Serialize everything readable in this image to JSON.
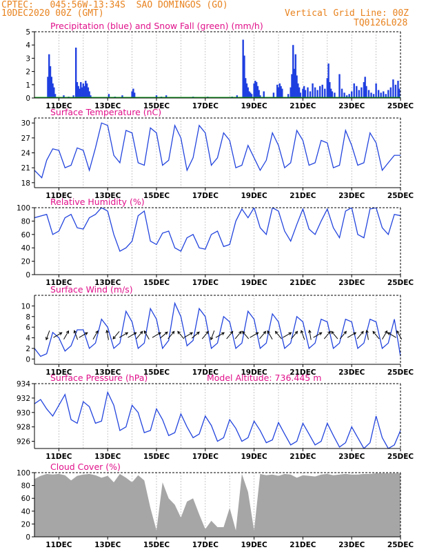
{
  "header": {
    "line1": "CPTEC:   045:56W-13:34S  SAO DOMINGOS (GO)",
    "line2": "10DEC2020 00Z (GMT)",
    "grid_note": "Vertical Grid Line: 00Z",
    "code": "TQ0126L028"
  },
  "x_axis_labels": [
    "11DEC",
    "13DEC",
    "15DEC",
    "17DEC",
    "19DEC",
    "21DEC",
    "23DEC",
    "25DEC"
  ],
  "colors": {
    "header": "#e8821e",
    "title": "#e0108a",
    "line": "#2244dd",
    "precip_bar": "#1f3fe0",
    "snow": "#11aa22",
    "cloud": "#a6a6a6",
    "grid": "#b0b0b0"
  },
  "chart_data": [
    {
      "type": "bar",
      "title": "Precipitation (blue) and Snow Fall (green) (mm/h)",
      "ylim": [
        0,
        5
      ],
      "yticks": [
        0,
        1,
        2,
        3,
        4,
        5
      ],
      "x_range_days": [
        10.0,
        25.0
      ],
      "series": [
        {
          "name": "Precipitation",
          "color": "#1f3fe0",
          "x": [
            10.55,
            10.6,
            10.65,
            10.7,
            10.75,
            10.8,
            10.85,
            11.2,
            11.4,
            11.6,
            11.7,
            11.75,
            11.8,
            11.85,
            11.9,
            11.95,
            12.0,
            12.05,
            12.1,
            12.15,
            12.2,
            12.25,
            12.3,
            13.05,
            13.3,
            13.6,
            14.0,
            14.05,
            14.1,
            15.0,
            15.2,
            15.4,
            16.5,
            17.1,
            18.1,
            18.3,
            18.55,
            18.6,
            18.65,
            18.7,
            18.75,
            18.8,
            18.85,
            18.9,
            19.0,
            19.05,
            19.1,
            19.15,
            19.2,
            19.25,
            19.4,
            19.8,
            19.95,
            20.0,
            20.05,
            20.1,
            20.15,
            20.4,
            20.5,
            20.55,
            20.6,
            20.65,
            20.7,
            20.75,
            20.8,
            20.85,
            20.9,
            21.0,
            21.05,
            21.1,
            21.2,
            21.3,
            21.4,
            21.5,
            21.6,
            21.7,
            21.8,
            21.9,
            22.0,
            22.05,
            22.1,
            22.15,
            22.2,
            22.3,
            22.5,
            22.6,
            22.7,
            22.8,
            22.9,
            23.0,
            23.1,
            23.2,
            23.3,
            23.4,
            23.5,
            23.55,
            23.6,
            23.7,
            23.8,
            23.9,
            24.0,
            24.1,
            24.2,
            24.3,
            24.4,
            24.5,
            24.6,
            24.7,
            24.8,
            24.9,
            24.95
          ],
          "values": [
            1.6,
            3.3,
            2.4,
            1.6,
            1.1,
            0.8,
            0.3,
            0.2,
            0.1,
            0.2,
            3.8,
            1.2,
            0.9,
            0.7,
            1.2,
            0.8,
            1.1,
            0.9,
            1.3,
            1.1,
            0.8,
            0.5,
            0.2,
            0.3,
            0.1,
            0.2,
            0.5,
            0.7,
            0.4,
            0.2,
            0.1,
            0.2,
            0.1,
            0.1,
            0.1,
            0.2,
            4.4,
            3.2,
            1.5,
            1.1,
            0.8,
            0.5,
            0.4,
            0.3,
            1.1,
            1.3,
            1.2,
            0.9,
            0.6,
            0.2,
            0.5,
            0.4,
            1.0,
            0.8,
            1.1,
            0.9,
            0.7,
            0.3,
            0.8,
            1.8,
            4.0,
            2.2,
            3.3,
            1.7,
            1.1,
            0.8,
            0.4,
            0.7,
            0.9,
            0.6,
            0.8,
            0.5,
            1.1,
            0.8,
            0.6,
            0.9,
            1.0,
            0.7,
            1.5,
            2.6,
            1.2,
            0.7,
            0.5,
            0.4,
            1.8,
            0.7,
            0.4,
            0.2,
            0.3,
            0.5,
            1.1,
            0.9,
            0.6,
            0.8,
            1.2,
            1.6,
            0.9,
            0.6,
            0.4,
            0.3,
            1.1,
            0.6,
            0.4,
            0.5,
            0.3,
            0.6,
            0.8,
            1.4,
            1.0,
            1.3,
            0.7
          ]
        },
        {
          "name": "Snow Fall",
          "color": "#11aa22",
          "x": [],
          "values": []
        }
      ]
    },
    {
      "type": "line",
      "title": "Surface Temperature (nC)",
      "ylim": [
        17,
        31
      ],
      "yticks": [
        18,
        21,
        24,
        27,
        30
      ],
      "series": [
        {
          "name": "Temperature",
          "color": "#2244dd",
          "x": [
            10.0,
            10.3,
            10.5,
            10.75,
            11.0,
            11.25,
            11.5,
            11.75,
            12.0,
            12.25,
            12.5,
            12.75,
            13.0,
            13.25,
            13.5,
            13.75,
            14.0,
            14.25,
            14.5,
            14.75,
            15.0,
            15.25,
            15.5,
            15.75,
            16.0,
            16.25,
            16.5,
            16.75,
            17.0,
            17.25,
            17.5,
            17.75,
            18.0,
            18.25,
            18.5,
            18.75,
            19.0,
            19.25,
            19.5,
            19.75,
            20.0,
            20.25,
            20.5,
            20.75,
            21.0,
            21.25,
            21.5,
            21.75,
            22.0,
            22.25,
            22.5,
            22.75,
            23.0,
            23.25,
            23.5,
            23.75,
            24.0,
            24.25,
            24.5,
            24.75,
            25.0
          ],
          "values": [
            20.5,
            19.0,
            22.5,
            24.8,
            24.5,
            21.0,
            21.5,
            25.0,
            24.5,
            20.5,
            25.0,
            30.0,
            29.5,
            23.5,
            22.0,
            28.5,
            28.0,
            22.0,
            21.5,
            29.0,
            28.0,
            21.5,
            22.5,
            29.5,
            27.0,
            20.5,
            23.0,
            29.5,
            28.0,
            21.5,
            23.0,
            28.0,
            26.5,
            21.0,
            21.5,
            25.5,
            23.0,
            20.5,
            22.5,
            28.0,
            25.5,
            21.0,
            22.0,
            28.5,
            26.5,
            21.5,
            22.0,
            26.5,
            26.0,
            21.0,
            21.5,
            28.5,
            25.5,
            21.5,
            22.0,
            28.0,
            26.0,
            20.5,
            22.0,
            23.5,
            23.5
          ]
        }
      ]
    },
    {
      "type": "line",
      "title": "Relative Humidity (%)",
      "ylim": [
        0,
        100
      ],
      "yticks": [
        0,
        20,
        40,
        60,
        80,
        100
      ],
      "series": [
        {
          "name": "Relative Humidity",
          "color": "#2244dd",
          "x": [
            10.0,
            10.3,
            10.5,
            10.75,
            11.0,
            11.25,
            11.5,
            11.75,
            12.0,
            12.25,
            12.5,
            12.75,
            13.0,
            13.25,
            13.5,
            13.75,
            14.0,
            14.25,
            14.5,
            14.75,
            15.0,
            15.25,
            15.5,
            15.75,
            16.0,
            16.25,
            16.5,
            16.75,
            17.0,
            17.25,
            17.5,
            17.75,
            18.0,
            18.25,
            18.5,
            18.75,
            19.0,
            19.25,
            19.5,
            19.75,
            20.0,
            20.25,
            20.5,
            20.75,
            21.0,
            21.25,
            21.5,
            21.75,
            22.0,
            22.25,
            22.5,
            22.75,
            23.0,
            23.25,
            23.5,
            23.75,
            24.0,
            24.25,
            24.5,
            24.75,
            25.0
          ],
          "values": [
            85,
            88,
            90,
            60,
            65,
            85,
            90,
            70,
            68,
            85,
            90,
            100,
            95,
            60,
            35,
            40,
            50,
            88,
            95,
            50,
            45,
            62,
            65,
            40,
            35,
            55,
            60,
            40,
            38,
            60,
            65,
            42,
            45,
            80,
            98,
            85,
            100,
            70,
            60,
            100,
            95,
            65,
            50,
            75,
            98,
            68,
            60,
            80,
            98,
            70,
            55,
            95,
            100,
            60,
            55,
            98,
            100,
            70,
            60,
            90,
            88
          ]
        }
      ]
    },
    {
      "type": "line",
      "title": "Surface Wind (m/s)",
      "ylim": [
        -1,
        12
      ],
      "yticks": [
        0,
        2,
        4,
        6,
        8,
        10
      ],
      "series": [
        {
          "name": "Wind speed",
          "color": "#2244dd",
          "x": [
            10.0,
            10.25,
            10.5,
            10.75,
            11.0,
            11.25,
            11.5,
            11.75,
            12.0,
            12.25,
            12.5,
            12.75,
            13.0,
            13.25,
            13.5,
            13.75,
            14.0,
            14.25,
            14.5,
            14.75,
            15.0,
            15.25,
            15.5,
            15.75,
            16.0,
            16.25,
            16.5,
            16.75,
            17.0,
            17.25,
            17.5,
            17.75,
            18.0,
            18.25,
            18.5,
            18.75,
            19.0,
            19.25,
            19.5,
            19.75,
            20.0,
            20.25,
            20.5,
            20.75,
            21.0,
            21.25,
            21.5,
            21.75,
            22.0,
            22.25,
            22.5,
            22.75,
            23.0,
            23.25,
            23.5,
            23.75,
            24.0,
            24.25,
            24.5,
            24.75,
            25.0
          ],
          "values": [
            2,
            0.5,
            1,
            5,
            4,
            1.5,
            2.5,
            5.5,
            5.5,
            2,
            3,
            7.5,
            6,
            2,
            3,
            9,
            7,
            2,
            3,
            9.5,
            7.5,
            2,
            3.5,
            10.5,
            8,
            2.5,
            3.5,
            9.5,
            8,
            2,
            3,
            8,
            7,
            2,
            3,
            9,
            7.5,
            2,
            3,
            8.5,
            7,
            2,
            3,
            8,
            7,
            2,
            3,
            7.5,
            7,
            2,
            3,
            7.5,
            7,
            2,
            3,
            7.5,
            7,
            2,
            3,
            7.5,
            0.5
          ]
        }
      ],
      "wind_arrow_x": [
        10.55,
        10.95,
        11.3,
        11.7,
        12.0,
        12.5,
        13.0,
        13.35,
        13.65,
        14.0,
        14.3,
        14.6,
        15.0,
        15.3,
        15.6,
        16.0,
        16.3,
        16.6,
        17.0,
        17.3,
        17.6,
        18.0,
        18.35,
        18.65,
        19.0,
        19.35,
        19.65,
        20.0,
        20.35,
        20.65,
        21.0,
        21.3,
        21.6,
        22.0,
        22.3,
        22.65,
        23.0,
        23.35,
        23.65,
        24.0,
        24.35,
        24.65,
        24.95
      ],
      "wind_arrow_bearing_deg": [
        200,
        60,
        30,
        340,
        60,
        30,
        350,
        220,
        60,
        60,
        40,
        330,
        60,
        50,
        40,
        320,
        60,
        50,
        40,
        200,
        60,
        40,
        40,
        320,
        60,
        40,
        330,
        320,
        60,
        40,
        340,
        350,
        60,
        40,
        320,
        40,
        60,
        40,
        350,
        320,
        30,
        300,
        330
      ]
    },
    {
      "type": "line",
      "title": "Surface Pressure (hPa)",
      "annotation": "Model Altitude: 736.445  m",
      "ylim": [
        925,
        934
      ],
      "yticks": [
        926,
        928,
        930,
        932,
        934
      ],
      "series": [
        {
          "name": "Pressure",
          "color": "#2244dd",
          "x": [
            10.0,
            10.25,
            10.5,
            10.75,
            11.0,
            11.25,
            11.5,
            11.75,
            12.0,
            12.25,
            12.5,
            12.75,
            13.0,
            13.25,
            13.5,
            13.75,
            14.0,
            14.25,
            14.5,
            14.75,
            15.0,
            15.25,
            15.5,
            15.75,
            16.0,
            16.25,
            16.5,
            16.75,
            17.0,
            17.25,
            17.5,
            17.75,
            18.0,
            18.25,
            18.5,
            18.75,
            19.0,
            19.25,
            19.5,
            19.75,
            20.0,
            20.25,
            20.5,
            20.75,
            21.0,
            21.25,
            21.5,
            21.75,
            22.0,
            22.25,
            22.5,
            22.75,
            23.0,
            23.25,
            23.5,
            23.75,
            24.0,
            24.25,
            24.5,
            24.75,
            25.0
          ],
          "values": [
            931.2,
            931.8,
            930.5,
            929.5,
            931.0,
            932.5,
            929.0,
            928.5,
            931.5,
            930.8,
            928.5,
            928.8,
            932.8,
            931.0,
            927.5,
            928.0,
            931.0,
            930.0,
            927.2,
            927.5,
            930.5,
            929.0,
            926.8,
            927.2,
            929.8,
            928.0,
            926.5,
            927.0,
            929.5,
            928.2,
            926.0,
            926.5,
            929.0,
            927.8,
            926.0,
            926.5,
            928.8,
            927.5,
            925.8,
            926.2,
            928.6,
            927.0,
            925.5,
            926.0,
            928.5,
            927.0,
            925.5,
            926.0,
            928.5,
            926.8,
            925.2,
            925.8,
            928.0,
            926.5,
            925.0,
            925.8,
            929.5,
            926.5,
            925.0,
            925.5,
            927.5
          ]
        }
      ]
    },
    {
      "type": "area",
      "title": "Cloud Cover (%)",
      "ylim": [
        0,
        100
      ],
      "yticks": [
        0,
        20,
        40,
        60,
        80,
        100
      ],
      "series": [
        {
          "name": "Cloud Cover",
          "color": "#a6a6a6",
          "x": [
            10.0,
            10.25,
            10.5,
            10.75,
            11.0,
            11.25,
            11.5,
            11.75,
            12.0,
            12.25,
            12.5,
            12.75,
            13.0,
            13.25,
            13.5,
            13.75,
            14.0,
            14.25,
            14.5,
            14.75,
            15.0,
            15.25,
            15.5,
            15.75,
            16.0,
            16.25,
            16.5,
            16.75,
            17.0,
            17.25,
            17.5,
            17.75,
            18.0,
            18.25,
            18.5,
            18.75,
            19.0,
            19.25,
            19.5,
            19.75,
            20.0,
            20.25,
            20.5,
            20.75,
            21.0,
            21.25,
            21.5,
            21.75,
            22.0,
            22.25,
            22.5,
            22.75,
            23.0,
            23.25,
            23.5,
            23.75,
            24.0,
            24.25,
            24.5,
            24.75,
            25.0
          ],
          "values": [
            90,
            95,
            98,
            97,
            98,
            96,
            88,
            95,
            97,
            98,
            96,
            92,
            95,
            85,
            98,
            92,
            85,
            96,
            88,
            45,
            10,
            85,
            60,
            50,
            30,
            55,
            60,
            35,
            12,
            25,
            15,
            15,
            45,
            10,
            98,
            70,
            10,
            98,
            96,
            97,
            95,
            98,
            97,
            92,
            96,
            95,
            94,
            97,
            98,
            96,
            97,
            98,
            97,
            97,
            98,
            98,
            99,
            99,
            99,
            99,
            99
          ]
        }
      ]
    }
  ]
}
